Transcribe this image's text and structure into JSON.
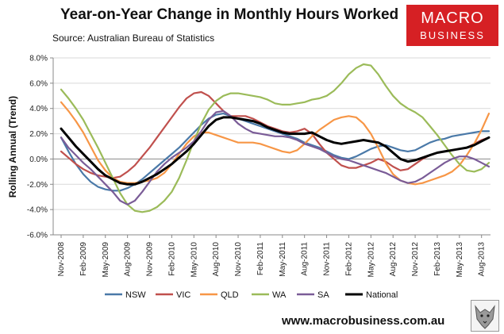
{
  "header": {
    "title": "Year-on-Year  Change  in Monthly Hours Worked",
    "source": "Source: Australian Bureau of Statistics"
  },
  "logo": {
    "line1": "MACRO",
    "line2": "BUSINESS"
  },
  "footer": {
    "url": "www.macrobusiness.com.au"
  },
  "colors": {
    "NSW": "#4a79a8",
    "VIC": "#c0504d",
    "QLD": "#f79646",
    "WA": "#9bbb59",
    "SA": "#7a5c97",
    "National": "#000000"
  },
  "chart_data": {
    "type": "line",
    "title": "Year-on-Year  Change  in Monthly Hours Worked",
    "xlabel": "",
    "ylabel": "Rolling Annual (Trend)",
    "ylim": [
      -6,
      8
    ],
    "yticks": [
      -6,
      -4,
      -2,
      0,
      2,
      4,
      6,
      8
    ],
    "ytick_labels": [
      "-6.0%",
      "-4.0%",
      "-2.0%",
      "0.0%",
      "2.0%",
      "4.0%",
      "6.0%",
      "8.0%"
    ],
    "xtick_labels": [
      "Nov-2008",
      "Feb-2009",
      "May-2009",
      "Aug-2009",
      "Nov-2009",
      "Feb-2010",
      "May-2010",
      "Aug-2010",
      "Nov-2010",
      "Feb-2011",
      "May-2011",
      "Aug-2011",
      "Nov-2011",
      "Feb-2012",
      "May-2012",
      "Aug-2012",
      "Nov-2012",
      "Feb-2013",
      "May-2013",
      "Aug-2013"
    ],
    "x": [
      "Nov-2008",
      "Dec-2008",
      "Jan-2009",
      "Feb-2009",
      "Mar-2009",
      "Apr-2009",
      "May-2009",
      "Jun-2009",
      "Jul-2009",
      "Aug-2009",
      "Sep-2009",
      "Oct-2009",
      "Nov-2009",
      "Dec-2009",
      "Jan-2010",
      "Feb-2010",
      "Mar-2010",
      "Apr-2010",
      "May-2010",
      "Jun-2010",
      "Jul-2010",
      "Aug-2010",
      "Sep-2010",
      "Oct-2010",
      "Nov-2010",
      "Dec-2010",
      "Jan-2011",
      "Feb-2011",
      "Mar-2011",
      "Apr-2011",
      "May-2011",
      "Jun-2011",
      "Jul-2011",
      "Aug-2011",
      "Sep-2011",
      "Oct-2011",
      "Nov-2011",
      "Dec-2011",
      "Jan-2012",
      "Feb-2012",
      "Mar-2012",
      "Apr-2012",
      "May-2012",
      "Jun-2012",
      "Jul-2012",
      "Aug-2012",
      "Sep-2012",
      "Oct-2012",
      "Nov-2012",
      "Dec-2012",
      "Jan-2013",
      "Feb-2013",
      "Mar-2013",
      "Apr-2013",
      "May-2013",
      "Jun-2013",
      "Jul-2013",
      "Aug-2013",
      "Sep-2013"
    ],
    "series": [
      {
        "name": "NSW",
        "values": [
          1.7,
          0.6,
          -0.4,
          -1.2,
          -1.8,
          -2.2,
          -2.4,
          -2.5,
          -2.5,
          -2.3,
          -2.0,
          -1.6,
          -1.1,
          -0.6,
          -0.1,
          0.4,
          0.9,
          1.5,
          2.1,
          2.7,
          3.2,
          3.5,
          3.6,
          3.4,
          3.2,
          3.0,
          2.8,
          2.6,
          2.4,
          2.2,
          2.0,
          1.8,
          1.6,
          1.3,
          1.1,
          0.9,
          0.6,
          0.3,
          0.1,
          0.0,
          0.2,
          0.5,
          0.8,
          1.0,
          1.1,
          0.9,
          0.7,
          0.6,
          0.7,
          1.0,
          1.3,
          1.5,
          1.6,
          1.8,
          1.9,
          2.0,
          2.1,
          2.2,
          2.2
        ]
      },
      {
        "name": "VIC",
        "values": [
          0.6,
          0.1,
          -0.4,
          -0.8,
          -1.1,
          -1.3,
          -1.4,
          -1.5,
          -1.4,
          -1.0,
          -0.5,
          0.2,
          0.9,
          1.7,
          2.5,
          3.3,
          4.1,
          4.8,
          5.2,
          5.3,
          5.0,
          4.4,
          3.8,
          3.4,
          3.4,
          3.4,
          3.2,
          2.9,
          2.6,
          2.4,
          2.2,
          2.1,
          2.2,
          2.4,
          2.0,
          1.2,
          0.5,
          0.0,
          -0.5,
          -0.7,
          -0.7,
          -0.5,
          -0.3,
          0.0,
          -0.2,
          -0.6,
          -0.9,
          -0.8,
          -0.4,
          0.0,
          0.3,
          0.5,
          0.6,
          0.7,
          0.8,
          0.9,
          1.2,
          1.5,
          1.7
        ]
      },
      {
        "name": "QLD",
        "values": [
          4.5,
          3.8,
          3.0,
          2.1,
          1.0,
          -0.1,
          -0.9,
          -1.5,
          -1.8,
          -1.9,
          -1.9,
          -1.8,
          -1.7,
          -1.5,
          -1.1,
          -0.4,
          0.4,
          1.2,
          1.8,
          2.1,
          2.1,
          1.9,
          1.7,
          1.5,
          1.3,
          1.3,
          1.3,
          1.2,
          1.0,
          0.8,
          0.6,
          0.5,
          0.7,
          1.2,
          1.8,
          2.3,
          2.7,
          3.1,
          3.3,
          3.4,
          3.3,
          2.8,
          2.0,
          0.9,
          -0.3,
          -1.2,
          -1.7,
          -1.9,
          -2.0,
          -1.9,
          -1.7,
          -1.5,
          -1.3,
          -1.0,
          -0.5,
          0.3,
          1.2,
          2.3,
          3.6
        ]
      },
      {
        "name": "WA",
        "values": [
          5.5,
          4.8,
          4.0,
          3.1,
          2.0,
          0.9,
          -0.3,
          -1.5,
          -2.7,
          -3.6,
          -4.1,
          -4.2,
          -4.1,
          -3.8,
          -3.3,
          -2.6,
          -1.5,
          -0.1,
          1.4,
          2.8,
          3.9,
          4.6,
          5.0,
          5.2,
          5.2,
          5.1,
          5.0,
          4.9,
          4.7,
          4.4,
          4.3,
          4.3,
          4.4,
          4.5,
          4.7,
          4.8,
          5.0,
          5.4,
          6.0,
          6.7,
          7.2,
          7.5,
          7.4,
          6.7,
          5.8,
          5.0,
          4.4,
          4.0,
          3.7,
          3.3,
          2.6,
          1.9,
          1.1,
          0.3,
          -0.4,
          -0.9,
          -1.0,
          -0.8,
          -0.3
        ]
      },
      {
        "name": "SA",
        "values": [
          1.7,
          0.9,
          0.3,
          -0.3,
          -0.8,
          -1.4,
          -2.0,
          -2.6,
          -3.3,
          -3.6,
          -3.3,
          -2.6,
          -1.8,
          -1.0,
          -0.4,
          0.1,
          0.5,
          0.9,
          1.4,
          2.2,
          3.1,
          3.7,
          3.8,
          3.4,
          2.8,
          2.4,
          2.1,
          2.0,
          1.9,
          1.8,
          1.8,
          1.7,
          1.5,
          1.2,
          1.0,
          0.8,
          0.5,
          0.2,
          0.0,
          -0.1,
          -0.3,
          -0.5,
          -0.7,
          -0.9,
          -1.1,
          -1.4,
          -1.7,
          -1.9,
          -1.8,
          -1.5,
          -1.1,
          -0.7,
          -0.3,
          0.0,
          0.2,
          0.2,
          0.0,
          -0.3,
          -0.6
        ]
      },
      {
        "name": "National",
        "values": [
          2.4,
          1.7,
          1.0,
          0.4,
          -0.2,
          -0.8,
          -1.3,
          -1.6,
          -1.9,
          -2.0,
          -2.0,
          -1.8,
          -1.5,
          -1.2,
          -0.8,
          -0.4,
          0.1,
          0.6,
          1.2,
          1.9,
          2.6,
          3.1,
          3.3,
          3.3,
          3.2,
          3.1,
          3.0,
          2.8,
          2.5,
          2.3,
          2.1,
          2.0,
          2.0,
          2.0,
          2.1,
          1.8,
          1.5,
          1.3,
          1.2,
          1.3,
          1.4,
          1.5,
          1.4,
          1.3,
          1.0,
          0.5,
          0.0,
          -0.2,
          -0.1,
          0.1,
          0.3,
          0.5,
          0.6,
          0.7,
          0.8,
          0.9,
          1.1,
          1.4,
          1.7
        ]
      }
    ],
    "legend_position": "bottom"
  }
}
